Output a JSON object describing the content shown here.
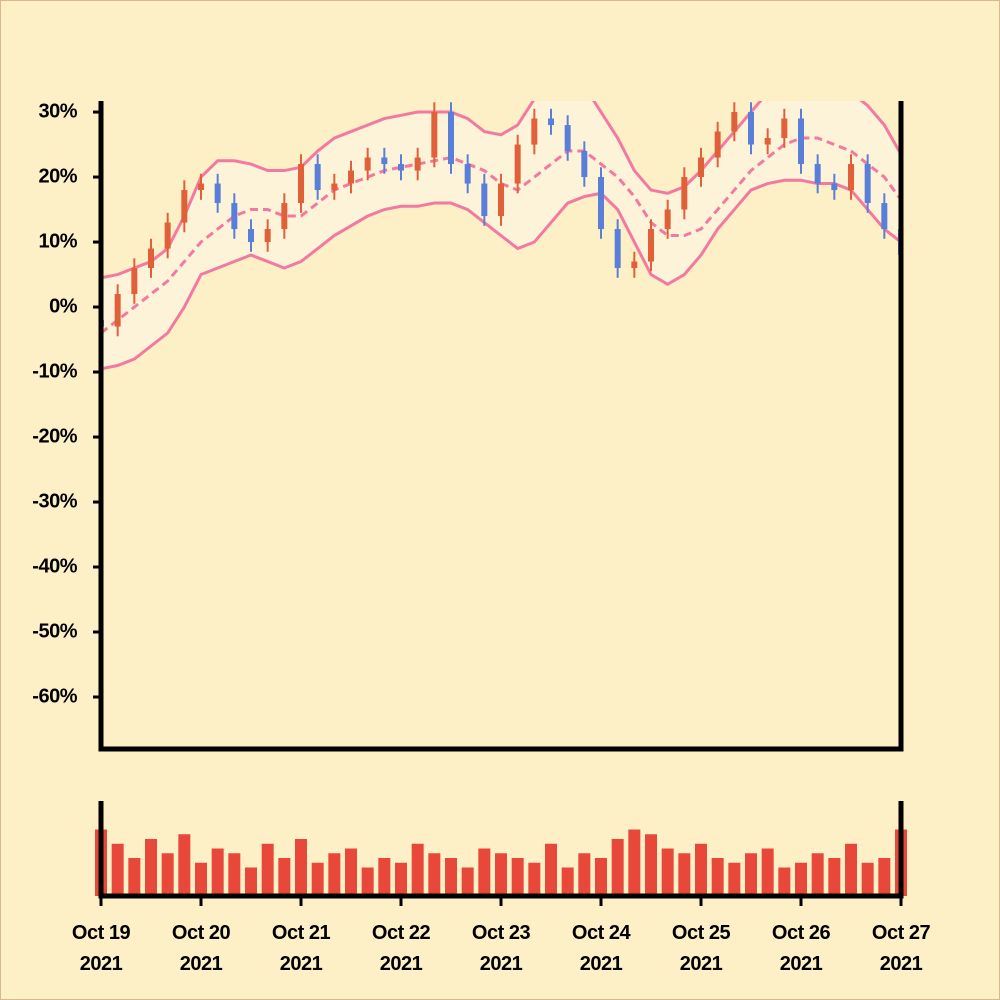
{
  "chart_data": [
    {
      "type": "candlestick",
      "x": [
        "2021-10-19 00:00",
        "2021-10-19 04:00",
        "2021-10-19 08:00",
        "2021-10-19 12:00",
        "2021-10-19 16:00",
        "2021-10-19 20:00",
        "2021-10-20 00:00",
        "2021-10-20 04:00",
        "2021-10-20 08:00",
        "2021-10-20 12:00",
        "2021-10-20 16:00",
        "2021-10-20 20:00",
        "2021-10-21 00:00",
        "2021-10-21 04:00",
        "2021-10-21 08:00",
        "2021-10-21 12:00",
        "2021-10-21 16:00",
        "2021-10-21 20:00",
        "2021-10-22 00:00",
        "2021-10-22 04:00",
        "2021-10-22 08:00",
        "2021-10-22 12:00",
        "2021-10-22 16:00",
        "2021-10-22 20:00",
        "2021-10-23 00:00",
        "2021-10-23 04:00",
        "2021-10-23 08:00",
        "2021-10-23 12:00",
        "2021-10-23 16:00",
        "2021-10-23 20:00",
        "2021-10-24 00:00",
        "2021-10-24 04:00",
        "2021-10-24 08:00",
        "2021-10-24 12:00",
        "2021-10-24 16:00",
        "2021-10-24 20:00",
        "2021-10-25 00:00",
        "2021-10-25 04:00",
        "2021-10-25 08:00",
        "2021-10-25 12:00",
        "2021-10-25 16:00",
        "2021-10-25 20:00",
        "2021-10-26 00:00",
        "2021-10-26 04:00",
        "2021-10-26 08:00",
        "2021-10-26 12:00",
        "2021-10-26 16:00",
        "2021-10-26 20:00",
        "2021-10-27 00:00"
      ],
      "open": [
        -2,
        -3,
        2,
        6,
        9,
        13,
        18,
        19,
        16,
        12,
        10,
        12,
        16,
        22,
        18,
        19,
        21,
        23,
        22,
        21,
        23,
        30,
        22,
        19,
        14,
        19,
        25,
        29,
        28,
        24,
        20,
        12,
        6,
        7,
        12,
        15,
        20,
        23,
        27,
        30,
        25,
        26,
        29,
        22,
        19,
        18,
        22,
        16,
        12
      ],
      "high": [
        -0.5,
        3.5,
        7.5,
        10.5,
        14.5,
        19.5,
        20.5,
        20.5,
        17.5,
        13.5,
        13.5,
        17.5,
        23.5,
        23.5,
        20.5,
        22.5,
        24.5,
        24.5,
        23.5,
        24.5,
        31.5,
        31.5,
        23.5,
        20.5,
        20.5,
        26.5,
        30.5,
        30.5,
        29.5,
        25.5,
        21.5,
        13.5,
        8.5,
        13.5,
        16.5,
        21.5,
        24.5,
        28.5,
        31.5,
        31.5,
        27.5,
        30.5,
        30.5,
        23.5,
        20.5,
        23.5,
        23.5,
        17.5,
        13.5
      ],
      "low": [
        -4.5,
        -4.5,
        0.5,
        4.5,
        7.5,
        11.5,
        16.5,
        14.5,
        10.5,
        8.5,
        8.5,
        10.5,
        14.5,
        16.5,
        16.5,
        17.5,
        19.5,
        20.5,
        19.5,
        19.5,
        21.5,
        20.5,
        17.5,
        12.5,
        12.5,
        17.5,
        23.5,
        26.5,
        22.5,
        18.5,
        10.5,
        4.5,
        4.5,
        5.5,
        10.5,
        13.5,
        18.5,
        21.5,
        25.5,
        23.5,
        23.5,
        24.5,
        20.5,
        17.5,
        16.5,
        16.5,
        14.5,
        10.5,
        6.5
      ],
      "close": [
        -3,
        2,
        6,
        9,
        13,
        18,
        19,
        16,
        12,
        10,
        12,
        16,
        22,
        18,
        19,
        21,
        23,
        22,
        21,
        23,
        30,
        22,
        19,
        14,
        19,
        25,
        29,
        28,
        24,
        20,
        12,
        6,
        7,
        12,
        15,
        20,
        23,
        27,
        30,
        25,
        26,
        29,
        22,
        19,
        18,
        22,
        16,
        12,
        8
      ],
      "up_color": "#e0603a",
      "down_color": "#5a7fd8",
      "bands": {
        "color": "#f27aa0",
        "fill": "#fdf3d8",
        "upper": [
          4.5,
          5,
          6,
          7,
          9,
          14,
          20,
          22.5,
          22.5,
          22,
          21,
          21,
          21.5,
          24,
          26,
          27,
          28,
          29,
          29.5,
          30,
          30,
          30,
          29,
          27,
          26.5,
          28,
          32,
          35,
          35,
          34,
          30,
          26,
          21,
          18,
          17.5,
          18.5,
          21,
          24,
          27,
          30,
          33,
          35,
          35,
          35,
          34,
          33,
          31,
          28,
          23.5
        ],
        "middle": [
          -4,
          -2,
          0,
          2,
          4,
          7,
          10,
          12,
          14,
          15,
          15,
          14,
          14,
          16,
          18,
          19,
          20,
          21,
          21.5,
          22,
          22.5,
          23,
          22,
          21,
          19,
          18,
          20,
          22,
          24,
          24,
          22,
          20,
          17,
          13,
          11,
          11,
          12,
          15,
          18,
          21,
          23,
          25,
          26,
          26,
          25,
          24,
          22,
          20,
          16.5
        ],
        "lower": [
          -9.5,
          -9,
          -8,
          -6,
          -4,
          0,
          5,
          6,
          7,
          8,
          7,
          6,
          7,
          9,
          11,
          12.5,
          14,
          15,
          15.5,
          15.5,
          16,
          16,
          15,
          13,
          11,
          9,
          10,
          13,
          16,
          17,
          17.5,
          15,
          10,
          5,
          3.5,
          5,
          8,
          12,
          15,
          18,
          19,
          19.5,
          19.5,
          19,
          19,
          18,
          15,
          12,
          10
        ]
      },
      "xlim": [
        "2021-10-19 00:00",
        "2021-10-27 00:00"
      ],
      "ylim": [
        -68,
        31.7
      ],
      "yticks": [
        {
          "value": -60,
          "label": "-60%"
        },
        {
          "value": -50,
          "label": "-50%"
        },
        {
          "value": -40,
          "label": "-40%"
        },
        {
          "value": -30,
          "label": "-30%"
        },
        {
          "value": -20,
          "label": "-20%"
        },
        {
          "value": -10,
          "label": "-10%"
        },
        {
          "value": 0,
          "label": "0%"
        },
        {
          "value": 10,
          "label": "10%"
        },
        {
          "value": 20,
          "label": "20%"
        },
        {
          "value": 30,
          "label": "30%"
        }
      ]
    },
    {
      "type": "bar",
      "x": [
        "2021-10-19 00:00",
        "2021-10-19 04:00",
        "2021-10-19 08:00",
        "2021-10-19 12:00",
        "2021-10-19 16:00",
        "2021-10-19 20:00",
        "2021-10-20 00:00",
        "2021-10-20 04:00",
        "2021-10-20 08:00",
        "2021-10-20 12:00",
        "2021-10-20 16:00",
        "2021-10-20 20:00",
        "2021-10-21 00:00",
        "2021-10-21 04:00",
        "2021-10-21 08:00",
        "2021-10-21 12:00",
        "2021-10-21 16:00",
        "2021-10-21 20:00",
        "2021-10-22 00:00",
        "2021-10-22 04:00",
        "2021-10-22 08:00",
        "2021-10-22 12:00",
        "2021-10-22 16:00",
        "2021-10-22 20:00",
        "2021-10-23 00:00",
        "2021-10-23 04:00",
        "2021-10-23 08:00",
        "2021-10-23 12:00",
        "2021-10-23 16:00",
        "2021-10-23 20:00",
        "2021-10-24 00:00",
        "2021-10-24 04:00",
        "2021-10-24 08:00",
        "2021-10-24 12:00",
        "2021-10-24 16:00",
        "2021-10-24 20:00",
        "2021-10-25 00:00",
        "2021-10-25 04:00",
        "2021-10-25 08:00",
        "2021-10-25 12:00",
        "2021-10-25 16:00",
        "2021-10-25 20:00",
        "2021-10-26 00:00",
        "2021-10-26 04:00",
        "2021-10-26 08:00",
        "2021-10-26 12:00",
        "2021-10-26 16:00",
        "2021-10-26 20:00",
        "2021-10-27 00:00"
      ],
      "values": [
        70,
        55,
        40,
        60,
        45,
        65,
        35,
        50,
        45,
        30,
        55,
        40,
        60,
        35,
        45,
        50,
        30,
        40,
        35,
        55,
        45,
        40,
        30,
        50,
        45,
        40,
        35,
        55,
        30,
        45,
        40,
        60,
        70,
        65,
        50,
        45,
        55,
        40,
        35,
        45,
        50,
        30,
        35,
        45,
        40,
        55,
        35,
        40,
        70
      ],
      "color": "#e8483a",
      "xlim": [
        "2021-10-19 00:00",
        "2021-10-27 00:00"
      ],
      "ylim": [
        0,
        100
      ],
      "xticks": [
        {
          "value": "2021-10-19 00:00",
          "label": "Oct 19 2021"
        },
        {
          "value": "2021-10-20 00:00",
          "label": "Oct 20 2021"
        },
        {
          "value": "2021-10-21 00:00",
          "label": "Oct 21 2021"
        },
        {
          "value": "2021-10-22 00:00",
          "label": "Oct 22 2021"
        },
        {
          "value": "2021-10-23 00:00",
          "label": "Oct 23 2021"
        },
        {
          "value": "2021-10-24 00:00",
          "label": "Oct 24 2021"
        },
        {
          "value": "2021-10-25 00:00",
          "label": "Oct 25 2021"
        },
        {
          "value": "2021-10-26 00:00",
          "label": "Oct 26 2021"
        },
        {
          "value": "2021-10-27 00:00",
          "label": "Oct 27 2021"
        }
      ]
    }
  ]
}
